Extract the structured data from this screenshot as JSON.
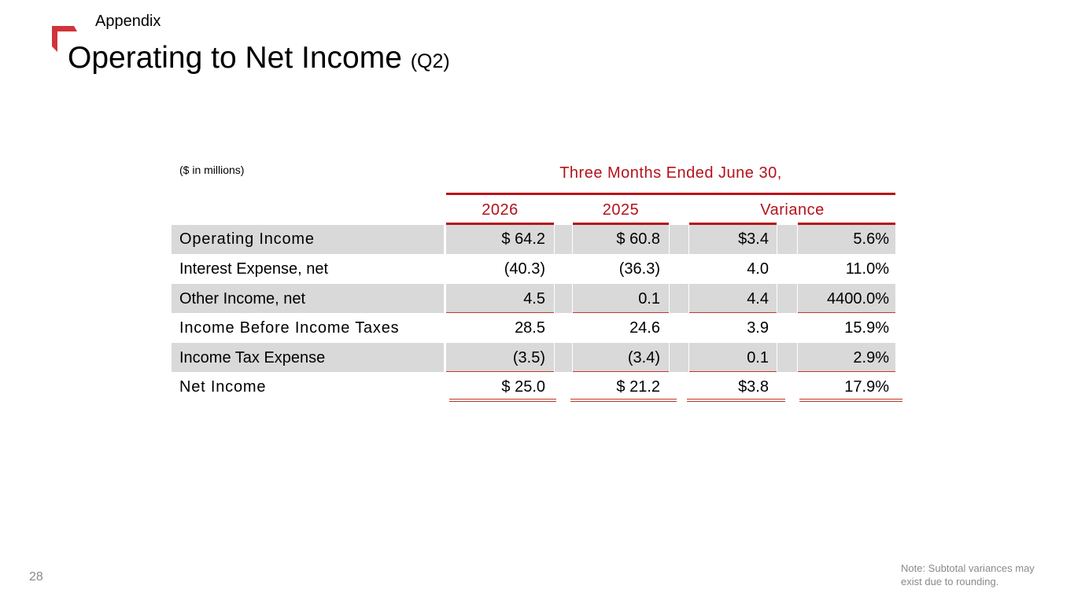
{
  "header": {
    "section": "Appendix",
    "title": "Operating to Net Income",
    "title_suffix": "(Q2)"
  },
  "table": {
    "units_label": "($ in millions)",
    "period_label": "Three Months Ended June 30,",
    "columns": {
      "y2026": "2026",
      "y2025": "2025",
      "variance": "Variance"
    },
    "rows": [
      {
        "label": "Operating Income",
        "v2026": "$ 64.2",
        "v2025": "$ 60.8",
        "var_amt": "$3.4",
        "var_pct": "5.6%"
      },
      {
        "label": "Interest Expense, net",
        "v2026": "(40.3)",
        "v2025": "(36.3)",
        "var_amt": "4.0",
        "var_pct": "11.0%"
      },
      {
        "label": "Other Income, net",
        "v2026": "4.5",
        "v2025": "0.1",
        "var_amt": "4.4",
        "var_pct": "4400.0%"
      },
      {
        "label": "Income Before Income Taxes",
        "v2026": "28.5",
        "v2025": "24.6",
        "var_amt": "3.9",
        "var_pct": "15.9%"
      },
      {
        "label": "Income Tax Expense",
        "v2026": "(3.5)",
        "v2025": "(3.4)",
        "var_amt": "0.1",
        "var_pct": "2.9%"
      },
      {
        "label": "Net Income",
        "v2026": "$ 25.0",
        "v2025": "$ 21.2",
        "var_amt": "$3.8",
        "var_pct": "17.9%"
      }
    ]
  },
  "footer": {
    "page_number": "28",
    "note": "Note: Subtotal variances may exist due to rounding."
  },
  "colors": {
    "accent": "#b5121b",
    "band": "#d9d9d9"
  }
}
